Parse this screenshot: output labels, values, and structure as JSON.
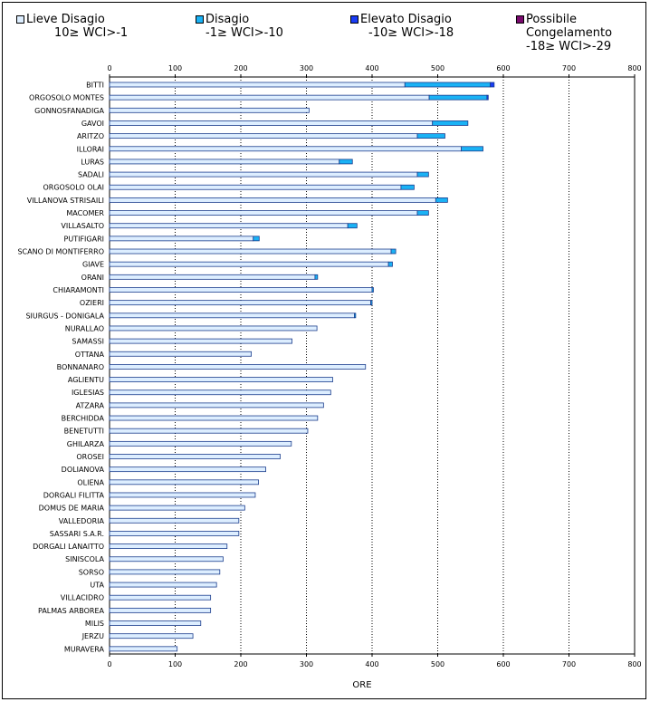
{
  "chart_data": {
    "type": "bar",
    "orientation": "horizontal",
    "stacked": true,
    "xlabel": "ORE",
    "xlim": [
      0,
      800
    ],
    "xticks": [
      0,
      100,
      200,
      300,
      400,
      500,
      600,
      700,
      800
    ],
    "legend_position": "top",
    "categories": [
      "BITTI",
      "ORGOSOLO MONTES",
      "GONNOSFANADIGA",
      "GAVOI",
      "ARITZO",
      "ILLORAI",
      "LURAS",
      "SADALI",
      "ORGOSOLO OLAI",
      "VILLANOVA STRISAILI",
      "MACOMER",
      "VILLASALTO",
      "PUTIFIGARI",
      "SCANO DI MONTIFERRO",
      "GIAVE",
      "ORANI",
      "CHIARAMONTI",
      "OZIERI",
      "SIURGUS - DONIGALA",
      "NURALLAO",
      "SAMASSI",
      "OTTANA",
      "BONNANARO",
      "AGLIENTU",
      "IGLESIAS",
      "ATZARA",
      "BERCHIDDA",
      "BENETUTTI",
      "GHILARZA",
      "OROSEI",
      "DOLIANOVA",
      "OLIENA",
      "DORGALI FILITTA",
      "DOMUS DE MARIA",
      "VALLEDORIA",
      "SASSARI S.A.R.",
      "DORGALI LANAITTO",
      "SINISCOLA",
      "SORSO",
      "UTA",
      "VILLACIDRO",
      "PALMAS ARBOREA",
      "MILIS",
      "JERZU",
      "MURAVERA"
    ],
    "series": [
      {
        "name": "Lieve Disagio",
        "range": "10≥ WCI>-1",
        "color": "#ddeeff",
        "values": [
          450,
          487,
          304,
          492,
          469,
          536,
          350,
          469,
          444,
          497,
          469,
          363,
          219,
          429,
          425,
          313,
          400,
          398,
          373,
          316,
          278,
          216,
          390,
          340,
          337,
          326,
          317,
          302,
          277,
          260,
          238,
          227,
          222,
          206,
          197,
          197,
          179,
          173,
          168,
          163,
          154,
          154,
          139,
          127,
          103
        ]
      },
      {
        "name": "Disagio",
        "range": "-1≥ WCI>-10",
        "color": "#1ab2f5",
        "values": [
          130,
          88,
          0,
          54,
          42,
          33,
          20,
          17,
          20,
          18,
          17,
          14,
          9,
          7,
          6,
          4,
          2,
          2,
          2,
          0,
          0,
          0,
          0,
          0,
          0,
          0,
          0,
          0,
          0,
          0,
          0,
          0,
          0,
          0,
          0,
          0,
          0,
          0,
          0,
          0,
          0,
          0,
          0,
          0,
          0
        ]
      },
      {
        "name": "Elevato Disagio",
        "range": "-10≥ WCI>-18",
        "color": "#1a3cf5",
        "values": [
          6,
          2,
          0,
          0,
          0,
          0,
          0,
          0,
          0,
          0,
          0,
          0,
          0,
          0,
          0,
          0,
          0,
          0,
          0,
          0,
          0,
          0,
          0,
          0,
          0,
          0,
          0,
          0,
          0,
          0,
          0,
          0,
          0,
          0,
          0,
          0,
          0,
          0,
          0,
          0,
          0,
          0,
          0,
          0,
          0
        ]
      },
      {
        "name": "Possibile Congelamento",
        "range": "-18≥ WCI>-29",
        "color": "#7a0a6e",
        "values": [
          0,
          0,
          0,
          0,
          0,
          0,
          0,
          0,
          0,
          0,
          0,
          0,
          0,
          0,
          0,
          0,
          0,
          0,
          0,
          0,
          0,
          0,
          0,
          0,
          0,
          0,
          0,
          0,
          0,
          0,
          0,
          0,
          0,
          0,
          0,
          0,
          0,
          0,
          0,
          0,
          0,
          0,
          0,
          0,
          0
        ]
      }
    ]
  }
}
